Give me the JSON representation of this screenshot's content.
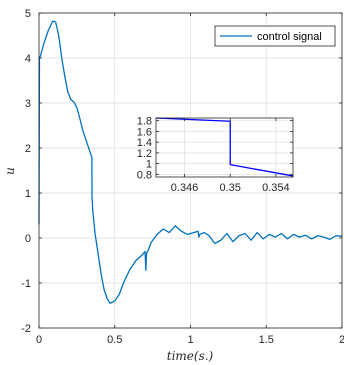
{
  "chart_data": [
    {
      "type": "line",
      "xlabel": "time(s.)",
      "ylabel": "u",
      "xlim": [
        0,
        2
      ],
      "ylim": [
        -2,
        5
      ],
      "xticks": [
        0,
        0.5,
        1,
        1.5,
        2
      ],
      "xtick_labels": [
        "0",
        "0.5",
        "1",
        "1.5",
        "2"
      ],
      "yticks": [
        -2,
        -1,
        0,
        1,
        2,
        3,
        4,
        5
      ],
      "ytick_labels": [
        "-2",
        "-1",
        "0",
        "1",
        "2",
        "3",
        "4",
        "5"
      ],
      "grid": true,
      "legend": {
        "position": "top-right",
        "entries": [
          "control signal"
        ]
      },
      "series": [
        {
          "name": "control signal",
          "color": "#0072BD",
          "x": [
            0,
            0.003,
            0.01,
            0.03,
            0.06,
            0.09,
            0.11,
            0.13,
            0.15,
            0.17,
            0.19,
            0.21,
            0.23,
            0.25,
            0.27,
            0.29,
            0.31,
            0.33,
            0.345,
            0.349,
            0.35,
            0.351,
            0.355,
            0.37,
            0.39,
            0.41,
            0.43,
            0.45,
            0.47,
            0.5,
            0.53,
            0.56,
            0.6,
            0.64,
            0.68,
            0.7,
            0.705,
            0.71,
            0.715,
            0.72,
            0.74,
            0.78,
            0.82,
            0.86,
            0.9,
            0.94,
            0.98,
            1.02,
            1.05,
            1.055,
            1.06,
            1.09,
            1.12,
            1.16,
            1.2,
            1.24,
            1.28,
            1.32,
            1.36,
            1.4,
            1.44,
            1.48,
            1.52,
            1.56,
            1.6,
            1.64,
            1.68,
            1.72,
            1.76,
            1.8,
            1.84,
            1.88,
            1.92,
            1.96,
            2
          ],
          "y": [
            0.3,
            4.0,
            4.05,
            4.3,
            4.6,
            4.82,
            4.8,
            4.5,
            4.0,
            3.6,
            3.25,
            3.08,
            3.02,
            2.9,
            2.65,
            2.38,
            2.18,
            1.98,
            1.83,
            1.8,
            0.9,
            0.85,
            0.6,
            0.1,
            -0.35,
            -0.8,
            -1.15,
            -1.35,
            -1.45,
            -1.4,
            -1.25,
            -0.98,
            -0.7,
            -0.5,
            -0.38,
            -0.3,
            -0.72,
            -0.35,
            -0.3,
            -0.28,
            -0.1,
            0.08,
            0.2,
            0.12,
            0.27,
            0.15,
            0.08,
            0.12,
            0.15,
            0.02,
            0.08,
            0.12,
            0.06,
            -0.12,
            -0.05,
            0.1,
            -0.08,
            0.05,
            0.1,
            -0.05,
            0.12,
            -0.02,
            0.08,
            0.02,
            0.1,
            -0.02,
            0.08,
            0.02,
            0.06,
            -0.02,
            0.05,
            0.02,
            -0.03,
            0.05,
            0.04
          ]
        }
      ]
    },
    {
      "type": "line",
      "xlim": [
        0.3435,
        0.3555
      ],
      "ylim": [
        0.75,
        1.85
      ],
      "xticks": [
        0.346,
        0.35,
        0.354
      ],
      "xtick_labels": [
        "0.346",
        "0.35",
        "0.354"
      ],
      "yticks": [
        0.8,
        1,
        1.2,
        1.4,
        1.6,
        1.8
      ],
      "ytick_labels": [
        "0.8",
        "1",
        "1.2",
        "1.4",
        "1.6",
        "1.8"
      ],
      "grid": true,
      "series": [
        {
          "color": "#0000FF",
          "x": [
            0.3435,
            0.35,
            0.35,
            0.3555
          ],
          "y": [
            1.85,
            1.79,
            0.98,
            0.77
          ]
        }
      ]
    }
  ]
}
